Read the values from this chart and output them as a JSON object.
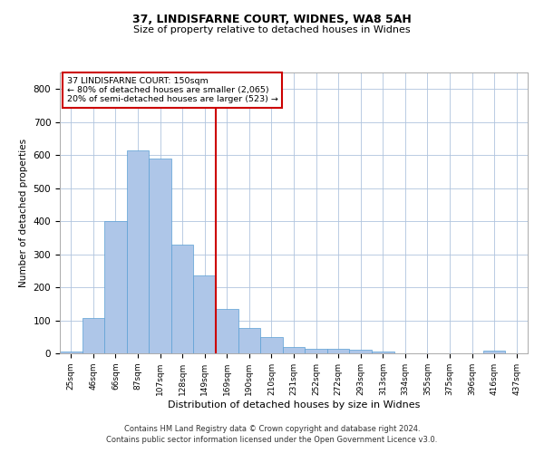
{
  "title1": "37, LINDISFARNE COURT, WIDNES, WA8 5AH",
  "title2": "Size of property relative to detached houses in Widnes",
  "xlabel": "Distribution of detached houses by size in Widnes",
  "ylabel": "Number of detached properties",
  "footnote1": "Contains HM Land Registry data © Crown copyright and database right 2024.",
  "footnote2": "Contains public sector information licensed under the Open Government Licence v3.0.",
  "annotation_line1": "37 LINDISFARNE COURT: 150sqm",
  "annotation_line2": "← 80% of detached houses are smaller (2,065)",
  "annotation_line3": "20% of semi-detached houses are larger (523) →",
  "bin_labels": [
    "25sqm",
    "46sqm",
    "66sqm",
    "87sqm",
    "107sqm",
    "128sqm",
    "149sqm",
    "169sqm",
    "190sqm",
    "210sqm",
    "231sqm",
    "252sqm",
    "272sqm",
    "293sqm",
    "313sqm",
    "334sqm",
    "355sqm",
    "375sqm",
    "396sqm",
    "416sqm",
    "437sqm"
  ],
  "bar_heights": [
    5,
    107,
    400,
    615,
    590,
    328,
    237,
    133,
    77,
    50,
    18,
    13,
    13,
    10,
    5,
    0,
    0,
    0,
    0,
    7,
    0
  ],
  "bar_color": "#aec6e8",
  "bar_edge_color": "#5a9fd4",
  "vline_x": 6.5,
  "vline_color": "#cc0000",
  "ylim": [
    0,
    850
  ],
  "yticks": [
    0,
    100,
    200,
    300,
    400,
    500,
    600,
    700,
    800
  ],
  "annotation_box_color": "#cc0000",
  "background_color": "#ffffff",
  "grid_color": "#b0c4de"
}
